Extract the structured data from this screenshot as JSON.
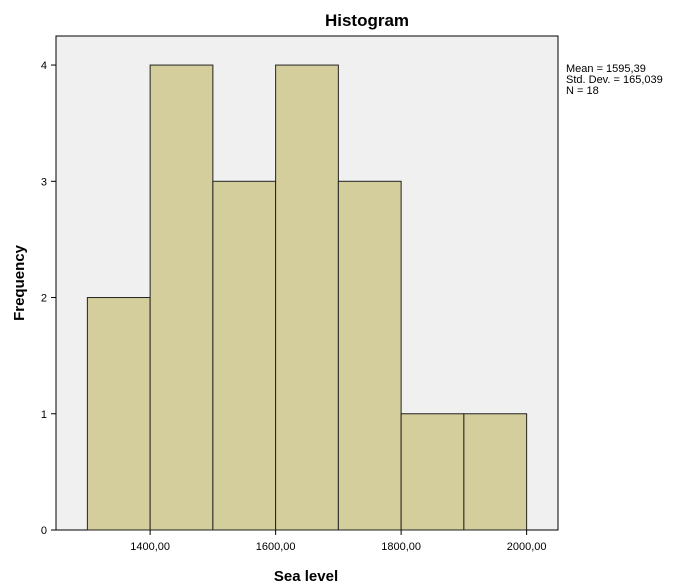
{
  "chart_data": {
    "type": "bar",
    "title": "Histogram",
    "xlabel": "Sea level",
    "ylabel": "Frequency",
    "bins": [
      {
        "start": 1300,
        "end": 1400,
        "value": 2
      },
      {
        "start": 1400,
        "end": 1500,
        "value": 4
      },
      {
        "start": 1500,
        "end": 1600,
        "value": 3
      },
      {
        "start": 1600,
        "end": 1700,
        "value": 4
      },
      {
        "start": 1700,
        "end": 1800,
        "value": 3
      },
      {
        "start": 1800,
        "end": 1900,
        "value": 1
      },
      {
        "start": 1900,
        "end": 2000,
        "value": 1
      }
    ],
    "xlim": [
      1250,
      2050
    ],
    "ylim": [
      0,
      4.25
    ],
    "x_ticks": [
      1400,
      1600,
      1800,
      2000
    ],
    "x_tick_labels": [
      "1400,00",
      "1600,00",
      "1800,00",
      "2000,00"
    ],
    "y_ticks": [
      0,
      1,
      2,
      3,
      4
    ],
    "y_tick_labels": [
      "0",
      "1",
      "2",
      "3",
      "4"
    ],
    "stats": {
      "mean": "Mean = 1595,39",
      "std_dev": "Std. Dev. = 165,039",
      "n": "N = 18"
    },
    "colors": {
      "bar_fill": "#d3ce9b",
      "bar_stroke": "#222222",
      "plot_background": "#f0f0f0",
      "axis": "#000000"
    },
    "grid": false,
    "legend": "none"
  }
}
